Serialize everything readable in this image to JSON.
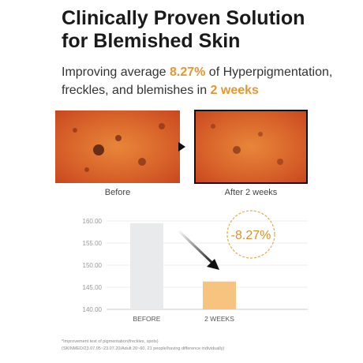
{
  "header": {
    "title_lines": [
      "Clinically Proven Solution",
      "for Blemished Skin"
    ],
    "subtitle": [
      "Improving average ",
      "8.27%",
      " of Hyperpigmentation,",
      "freckles, and blemishes in ",
      "2 weeks"
    ]
  },
  "images": {
    "before_caption": "Before",
    "after_caption": "After 2 weeks"
  },
  "chart_data": {
    "type": "bar",
    "categories": [
      "BEFORE",
      "2 WEEKS"
    ],
    "values": [
      159.5,
      146.3
    ],
    "colors": [
      "#e8eaec",
      "#f6c47e"
    ],
    "ylim": [
      140,
      160
    ],
    "yticks": [
      {
        "value": 140,
        "label": "140.00"
      },
      {
        "value": 145,
        "label": "145.00"
      },
      {
        "value": 150,
        "label": "150.00"
      },
      {
        "value": 155,
        "label": "155.00"
      },
      {
        "value": 160,
        "label": "160.00"
      }
    ],
    "grid": true,
    "annotation": "-8.27%"
  },
  "footnotes": [
    "*Improvement test of pigmentation(freckles, spots)",
    "(SKINMED/23.07.05~23.07.20/Adult 20~60, 21 people/having difference individually)"
  ]
}
